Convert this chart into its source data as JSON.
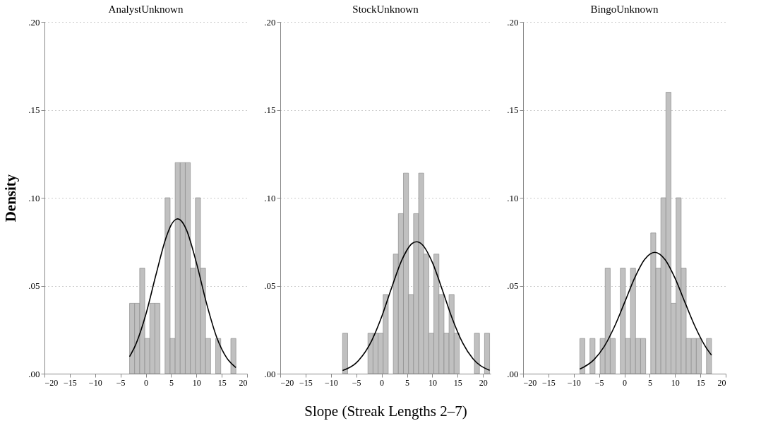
{
  "chart_data": [
    {
      "type": "histogram",
      "title": "AnalystUnknown",
      "ylabel": "Density",
      "color": "#c0c0c0",
      "bins": [
        -3.2,
        -2.2,
        -1.2,
        -0.2,
        0.8,
        1.8,
        2.8,
        3.8,
        4.8,
        5.8,
        6.8,
        7.8,
        8.8,
        9.8,
        10.8,
        11.8,
        12.8,
        13.8,
        14.8,
        15.8,
        16.8,
        17.8
      ],
      "values": [
        0.04,
        0.04,
        0.06,
        0.02,
        0.04,
        0.04,
        0,
        0.1,
        0.02,
        0.12,
        0.12,
        0.12,
        0.06,
        0.1,
        0.06,
        0.02,
        0,
        0.02,
        0,
        0,
        0.02
      ],
      "series": [
        {
          "type": "line",
          "color": "#000000",
          "x": [
            -3.2,
            -2,
            0,
            2,
            4,
            5,
            6,
            6.3,
            7,
            8,
            10,
            12,
            14,
            16,
            17.8
          ],
          "values": [
            0.0097,
            0.0164,
            0.0335,
            0.0561,
            0.0773,
            0.0845,
            0.0878,
            0.088,
            0.0869,
            0.082,
            0.063,
            0.0399,
            0.0207,
            0.0089,
            0.0035
          ]
        }
      ],
      "xlim": [
        -20,
        20
      ],
      "xticks": [
        -20,
        -15,
        -10,
        -5,
        0,
        5,
        10,
        15,
        20
      ],
      "ylim": [
        0,
        0.2
      ],
      "yticks": [
        {
          "value": 0,
          "label": ".00"
        },
        {
          "value": 0.05,
          "label": ".05"
        },
        {
          "value": 0.1,
          "label": ".10"
        },
        {
          "value": 0.15,
          "label": ".15"
        },
        {
          "value": 0.2,
          "label": ".20"
        }
      ],
      "grid": "y"
    },
    {
      "type": "histogram",
      "title": "StockUnknown",
      "xlabel": "Slope (Streak Lengths 2–7)",
      "color": "#c0c0c0",
      "bins": [
        -7.7,
        -6.7,
        -5.7,
        -4.7,
        -3.7,
        -2.7,
        -1.7,
        -0.7,
        0.3,
        1.3,
        2.3,
        3.3,
        4.3,
        5.3,
        6.3,
        7.3,
        8.3,
        9.3,
        10.3,
        11.3,
        12.3,
        13.3,
        14.3,
        15.3,
        16.3,
        17.3,
        18.3,
        19.3,
        20.3,
        21.3
      ],
      "values": [
        0.023,
        0,
        0,
        0,
        0,
        0.023,
        0.023,
        0.023,
        0.045,
        0,
        0.068,
        0.091,
        0.114,
        0.045,
        0.091,
        0.114,
        0.068,
        0.023,
        0.068,
        0.045,
        0.023,
        0.045,
        0.023,
        0,
        0,
        0,
        0.023,
        0,
        0.023
      ],
      "series": [
        {
          "type": "line",
          "color": "#000000",
          "x": [
            -7.7,
            -5,
            -2,
            0,
            2,
            4,
            6,
            6.9,
            8,
            10,
            12,
            14,
            16,
            18,
            21.3
          ],
          "values": [
            0.0018,
            0.0062,
            0.0185,
            0.0323,
            0.0491,
            0.0647,
            0.074,
            0.075,
            0.0734,
            0.0633,
            0.0474,
            0.0308,
            0.0174,
            0.0085,
            0.0019
          ]
        }
      ],
      "xlim": [
        -20,
        21.5
      ],
      "xticks": [
        -20,
        -15,
        -10,
        -5,
        0,
        5,
        10,
        15,
        20
      ],
      "ylim": [
        0,
        0.2
      ],
      "yticks": [
        {
          "value": 0,
          "label": ".00"
        },
        {
          "value": 0.05,
          "label": ".05"
        },
        {
          "value": 0.1,
          "label": ".10"
        },
        {
          "value": 0.15,
          "label": ".15"
        },
        {
          "value": 0.2,
          "label": ".20"
        }
      ],
      "grid": "y"
    },
    {
      "type": "histogram",
      "title": "BingoUnknown",
      "color": "#c0c0c0",
      "bins": [
        -8.8,
        -7.8,
        -6.8,
        -5.8,
        -4.8,
        -3.8,
        -2.8,
        -1.8,
        -0.8,
        0.2,
        1.2,
        2.2,
        3.2,
        4.2,
        5.2,
        6.2,
        7.2,
        8.2,
        9.2,
        10.2,
        11.2,
        12.2,
        13.2,
        14.2,
        15.2,
        16.2,
        17.2
      ],
      "values": [
        0.02,
        0,
        0.02,
        0,
        0.02,
        0.06,
        0.02,
        0,
        0.06,
        0.02,
        0.06,
        0.02,
        0.02,
        0,
        0.08,
        0.06,
        0.1,
        0.16,
        0.04,
        0.1,
        0.06,
        0.02,
        0.02,
        0.02,
        0,
        0.02
      ],
      "series": [
        {
          "type": "line",
          "color": "#000000",
          "x": [
            -8.8,
            -6,
            -4,
            -2,
            0,
            2,
            4,
            6,
            8,
            10,
            12,
            14,
            16,
            17.2
          ],
          "values": [
            0.0026,
            0.008,
            0.0154,
            0.0265,
            0.0402,
            0.0543,
            0.065,
            0.069,
            0.065,
            0.0543,
            0.0402,
            0.0265,
            0.0154,
            0.0105
          ]
        }
      ],
      "xlim": [
        -20,
        20
      ],
      "xticks": [
        -20,
        -15,
        -10,
        -5,
        0,
        5,
        10,
        15,
        20
      ],
      "ylim": [
        0,
        0.2
      ],
      "yticks": [
        {
          "value": 0,
          "label": ".00"
        },
        {
          "value": 0.05,
          "label": ".05"
        },
        {
          "value": 0.1,
          "label": ".10"
        },
        {
          "value": 0.15,
          "label": ".15"
        },
        {
          "value": 0.2,
          "label": ".20"
        }
      ],
      "grid": "y"
    }
  ]
}
